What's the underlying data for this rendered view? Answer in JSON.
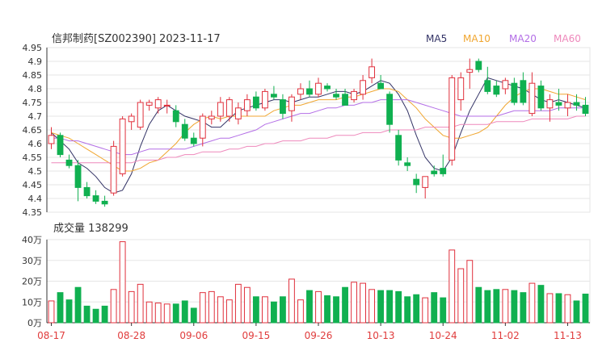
{
  "header": {
    "title": "信邦制药[SZ002390] 2023-11-17",
    "legend": [
      {
        "label": "MA5",
        "color": "#333366"
      },
      {
        "label": "MA10",
        "color": "#f0a630"
      },
      {
        "label": "MA20",
        "color": "#b36ee6"
      },
      {
        "label": "MA60",
        "color": "#ee88bb"
      }
    ]
  },
  "volume_title": "成交量 138299",
  "colors": {
    "up": "#e0303c",
    "down": "#10b050",
    "grid": "#e6e6e6",
    "axis": "#333333"
  },
  "chart_data": [
    {
      "type": "candlestick",
      "ylim": [
        4.35,
        4.95
      ],
      "y_ticks": [
        "4.95",
        "4.9",
        "4.85",
        "4.8",
        "4.75",
        "4.7",
        "4.65",
        "4.6",
        "4.55",
        "4.5",
        "4.45",
        "4.4",
        "4.35"
      ],
      "x_tick_labels": [
        {
          "index": 0,
          "label": "08-17"
        },
        {
          "index": 9,
          "label": "08-28"
        },
        {
          "index": 16,
          "label": "09-06"
        },
        {
          "index": 23,
          "label": "09-15"
        },
        {
          "index": 30,
          "label": "09-26"
        },
        {
          "index": 37,
          "label": "10-13"
        },
        {
          "index": 44,
          "label": "10-24"
        },
        {
          "index": 51,
          "label": "11-02"
        },
        {
          "index": 58,
          "label": "11-13"
        }
      ],
      "ohlc": [
        [
          4.6,
          4.66,
          4.58,
          4.63
        ],
        [
          4.63,
          4.64,
          4.55,
          4.56
        ],
        [
          4.54,
          4.56,
          4.51,
          4.52
        ],
        [
          4.52,
          4.54,
          4.39,
          4.44
        ],
        [
          4.44,
          4.46,
          4.4,
          4.41
        ],
        [
          4.41,
          4.43,
          4.38,
          4.39
        ],
        [
          4.39,
          4.41,
          4.37,
          4.38
        ],
        [
          4.42,
          4.61,
          4.41,
          4.59
        ],
        [
          4.49,
          4.7,
          4.48,
          4.69
        ],
        [
          4.68,
          4.71,
          4.65,
          4.7
        ],
        [
          4.66,
          4.76,
          4.65,
          4.75
        ],
        [
          4.74,
          4.76,
          4.72,
          4.75
        ],
        [
          4.73,
          4.77,
          4.71,
          4.76
        ],
        [
          4.74,
          4.76,
          4.71,
          4.74
        ],
        [
          4.72,
          4.74,
          4.66,
          4.68
        ],
        [
          4.67,
          4.69,
          4.61,
          4.62
        ],
        [
          4.62,
          4.64,
          4.59,
          4.6
        ],
        [
          4.62,
          4.71,
          4.59,
          4.7
        ],
        [
          4.69,
          4.72,
          4.67,
          4.7
        ],
        [
          4.7,
          4.77,
          4.68,
          4.75
        ],
        [
          4.7,
          4.77,
          4.68,
          4.76
        ],
        [
          4.69,
          4.75,
          4.67,
          4.73
        ],
        [
          4.72,
          4.78,
          4.7,
          4.76
        ],
        [
          4.77,
          4.79,
          4.72,
          4.73
        ],
        [
          4.73,
          4.8,
          4.72,
          4.79
        ],
        [
          4.78,
          4.81,
          4.76,
          4.77
        ],
        [
          4.76,
          4.78,
          4.69,
          4.71
        ],
        [
          4.72,
          4.78,
          4.68,
          4.77
        ],
        [
          4.78,
          4.82,
          4.76,
          4.8
        ],
        [
          4.8,
          4.83,
          4.77,
          4.78
        ],
        [
          4.78,
          4.84,
          4.77,
          4.82
        ],
        [
          4.81,
          4.82,
          4.79,
          4.8
        ],
        [
          4.78,
          4.8,
          4.76,
          4.77
        ],
        [
          4.78,
          4.8,
          4.74,
          4.74
        ],
        [
          4.76,
          4.8,
          4.75,
          4.79
        ],
        [
          4.78,
          4.85,
          4.76,
          4.83
        ],
        [
          4.84,
          4.91,
          4.82,
          4.88
        ],
        [
          4.82,
          4.85,
          4.8,
          4.8
        ],
        [
          4.78,
          4.79,
          4.64,
          4.67
        ],
        [
          4.63,
          4.65,
          4.52,
          4.54
        ],
        [
          4.53,
          4.55,
          4.5,
          4.52
        ],
        [
          4.47,
          4.49,
          4.42,
          4.45
        ],
        [
          4.44,
          4.48,
          4.4,
          4.48
        ],
        [
          4.5,
          4.52,
          4.48,
          4.49
        ],
        [
          4.51,
          4.56,
          4.48,
          4.49
        ],
        [
          4.54,
          4.85,
          4.52,
          4.84
        ],
        [
          4.76,
          4.86,
          4.72,
          4.84
        ],
        [
          4.86,
          4.91,
          4.8,
          4.87
        ],
        [
          4.9,
          4.91,
          4.86,
          4.87
        ],
        [
          4.83,
          4.88,
          4.78,
          4.79
        ],
        [
          4.81,
          4.83,
          4.77,
          4.78
        ],
        [
          4.8,
          4.84,
          4.78,
          4.83
        ],
        [
          4.82,
          4.84,
          4.74,
          4.75
        ],
        [
          4.83,
          4.86,
          4.74,
          4.75
        ],
        [
          4.71,
          4.86,
          4.7,
          4.82
        ],
        [
          4.81,
          4.83,
          4.72,
          4.73
        ],
        [
          4.73,
          4.78,
          4.68,
          4.76
        ],
        [
          4.75,
          4.8,
          4.72,
          4.74
        ],
        [
          4.73,
          4.78,
          4.7,
          4.75
        ],
        [
          4.75,
          4.78,
          4.72,
          4.74
        ],
        [
          4.74,
          4.77,
          4.7,
          4.71
        ]
      ],
      "ma5": [
        4.64,
        4.61,
        4.58,
        4.53,
        4.51,
        4.48,
        4.44,
        4.42,
        4.43,
        4.49,
        4.59,
        4.67,
        4.72,
        4.74,
        4.72,
        4.7,
        4.69,
        4.68,
        4.66,
        4.66,
        4.69,
        4.72,
        4.73,
        4.74,
        4.75,
        4.76,
        4.76,
        4.75,
        4.76,
        4.77,
        4.77,
        4.78,
        4.79,
        4.79,
        4.78,
        4.79,
        4.81,
        4.83,
        4.82,
        4.78,
        4.72,
        4.63,
        4.55,
        4.51,
        4.5,
        4.55,
        4.64,
        4.72,
        4.78,
        4.84,
        4.83,
        4.82,
        4.81,
        4.8,
        4.78,
        4.76,
        4.75,
        4.76,
        4.75,
        4.74,
        4.73
      ],
      "ma10": [
        4.64,
        4.63,
        4.62,
        4.6,
        4.58,
        4.56,
        4.54,
        4.52,
        4.5,
        4.5,
        4.51,
        4.53,
        4.54,
        4.57,
        4.6,
        4.64,
        4.67,
        4.69,
        4.7,
        4.69,
        4.7,
        4.7,
        4.7,
        4.7,
        4.7,
        4.72,
        4.73,
        4.74,
        4.74,
        4.75,
        4.76,
        4.76,
        4.76,
        4.77,
        4.77,
        4.78,
        4.79,
        4.8,
        4.8,
        4.79,
        4.76,
        4.73,
        4.69,
        4.66,
        4.63,
        4.62,
        4.62,
        4.63,
        4.64,
        4.66,
        4.7,
        4.74,
        4.77,
        4.79,
        4.8,
        4.8,
        4.79,
        4.78,
        4.78,
        4.77,
        4.76
      ],
      "ma20": [
        4.62,
        4.62,
        4.61,
        4.61,
        4.6,
        4.59,
        4.58,
        4.57,
        4.56,
        4.56,
        4.57,
        4.58,
        4.58,
        4.58,
        4.58,
        4.58,
        4.59,
        4.6,
        4.61,
        4.62,
        4.62,
        4.63,
        4.64,
        4.65,
        4.67,
        4.68,
        4.69,
        4.7,
        4.71,
        4.71,
        4.72,
        4.73,
        4.73,
        4.74,
        4.74,
        4.75,
        4.75,
        4.76,
        4.76,
        4.76,
        4.76,
        4.75,
        4.74,
        4.73,
        4.72,
        4.71,
        4.7,
        4.7,
        4.7,
        4.7,
        4.7,
        4.71,
        4.72,
        4.72,
        4.72,
        4.72,
        4.72,
        4.73,
        4.73,
        4.73,
        4.73
      ],
      "ma60": [
        4.53,
        4.53,
        4.53,
        4.53,
        4.53,
        4.53,
        4.53,
        4.53,
        4.53,
        4.53,
        4.54,
        4.54,
        4.54,
        4.55,
        4.55,
        4.56,
        4.56,
        4.57,
        4.57,
        4.57,
        4.58,
        4.58,
        4.59,
        4.59,
        4.6,
        4.6,
        4.61,
        4.61,
        4.61,
        4.62,
        4.62,
        4.62,
        4.63,
        4.63,
        4.63,
        4.64,
        4.64,
        4.64,
        4.65,
        4.65,
        4.65,
        4.65,
        4.66,
        4.66,
        4.66,
        4.66,
        4.67,
        4.67,
        4.67,
        4.67,
        4.68,
        4.68,
        4.68,
        4.68,
        4.69,
        4.69,
        4.69,
        4.69,
        4.69,
        4.7,
        4.7
      ]
    },
    {
      "type": "bar",
      "ylim": [
        0,
        40
      ],
      "y_ticks": [
        "40万",
        "30万",
        "20万",
        "10万",
        "0万"
      ],
      "values": [
        10.5,
        14.5,
        11,
        17,
        8,
        6.5,
        8,
        16,
        39,
        15,
        18.5,
        10,
        9.5,
        9,
        9,
        10.5,
        7,
        14.5,
        15,
        12.5,
        11,
        18.5,
        17,
        12.5,
        12.5,
        10,
        12.5,
        21,
        11,
        15.5,
        15,
        13,
        12.5,
        17,
        19.5,
        19,
        16,
        15.5,
        15.5,
        15,
        12.5,
        13.5,
        12,
        14.5,
        12,
        35,
        26,
        30,
        17,
        15.5,
        16,
        16,
        15.5,
        14.5,
        19,
        18,
        14,
        14,
        13.5,
        10.5,
        13.8
      ]
    }
  ]
}
